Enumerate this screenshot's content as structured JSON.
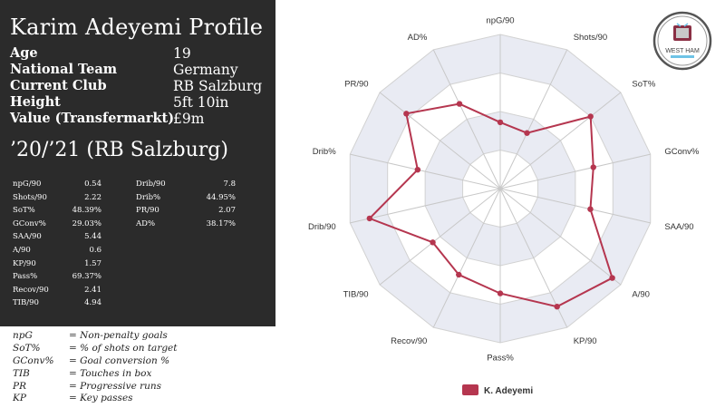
{
  "profile": {
    "title": "Karim Adeyemi Profile",
    "info": [
      {
        "label": "Age",
        "value": "19"
      },
      {
        "label": "National Team",
        "value": "Germany"
      },
      {
        "label": "Current Club",
        "value": "RB Salzburg"
      },
      {
        "label": "Height",
        "value": "5ft 10in"
      },
      {
        "label": "Value (Transfermarkt)",
        "value": "£9m"
      }
    ],
    "season": "’20/’21 (RB Salzburg)",
    "stats_left": [
      {
        "label": "npG/90",
        "value": "0.54"
      },
      {
        "label": "Shots/90",
        "value": "2.22"
      },
      {
        "label": "SoT%",
        "value": "48.39%"
      },
      {
        "label": "GConv%",
        "value": "29.03%"
      },
      {
        "label": "SAA/90",
        "value": "5.44"
      },
      {
        "label": "A/90",
        "value": "0.6"
      },
      {
        "label": "KP/90",
        "value": "1.57"
      },
      {
        "label": "Pass%",
        "value": "69.37%"
      },
      {
        "label": "Recov/90",
        "value": "2.41"
      },
      {
        "label": "TIB/90",
        "value": "4.94"
      }
    ],
    "stats_right": [
      {
        "label": "Drib/90",
        "value": "7.8"
      },
      {
        "label": "Drib%",
        "value": "44.95%"
      },
      {
        "label": "PR/90",
        "value": "2.07"
      },
      {
        "label": "AD%",
        "value": "38.17%"
      }
    ]
  },
  "glossary": [
    {
      "abbr": "npG",
      "meaning": "= Non-penalty goals"
    },
    {
      "abbr": "SoT%",
      "meaning": "= % of shots on target"
    },
    {
      "abbr": "GConv%",
      "meaning": "= Goal conversion %"
    },
    {
      "abbr": "TIB",
      "meaning": "= Touches in box"
    },
    {
      "abbr": "PR",
      "meaning": "= Progressive runs"
    },
    {
      "abbr": "KP",
      "meaning": "= Key passes"
    }
  ],
  "logo": {
    "text": "WEST HAM"
  },
  "chart_data": {
    "type": "radar",
    "axes": [
      "npG/90",
      "Shots/90",
      "SoT%",
      "GConv%",
      "SAA/90",
      "A/90",
      "KP/90",
      "Pass%",
      "Recov/90",
      "TIB/90",
      "Drib/90",
      "Drib%",
      "PR/90",
      "AD%"
    ],
    "series": [
      {
        "name": "K. Adeyemi",
        "color": "#b5364f",
        "values": [
          0.43,
          0.4,
          0.75,
          0.62,
          0.6,
          0.93,
          0.85,
          0.68,
          0.62,
          0.56,
          0.87,
          0.55,
          0.78,
          0.61
        ]
      }
    ],
    "rlim": [
      0,
      1
    ],
    "rings": 4,
    "legend": "bottom",
    "grid": true
  }
}
